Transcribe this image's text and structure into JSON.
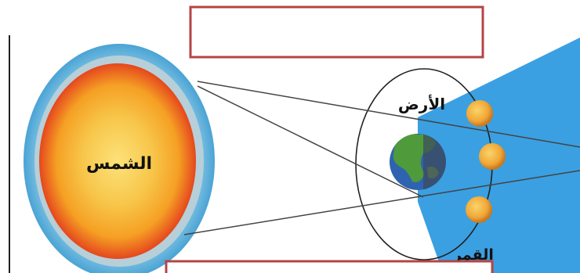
{
  "diagram": {
    "labels": {
      "sun": "الشمس",
      "earth": "الأرض",
      "moon": "القمر"
    },
    "answer_boxes": [
      {
        "value": ""
      },
      {
        "value": ""
      }
    ],
    "colors": {
      "sun_core": "#f7c64a",
      "sun_mid": "#f5a024",
      "sun_edge": "#e5471e",
      "sun_halo": "#6fb6dc",
      "shadow": "#3aa0e2",
      "box_border": "#b54444",
      "earth_ocean": "#2f63b0",
      "earth_land": "#4f9a3b",
      "moon": "#f3b13b"
    }
  }
}
